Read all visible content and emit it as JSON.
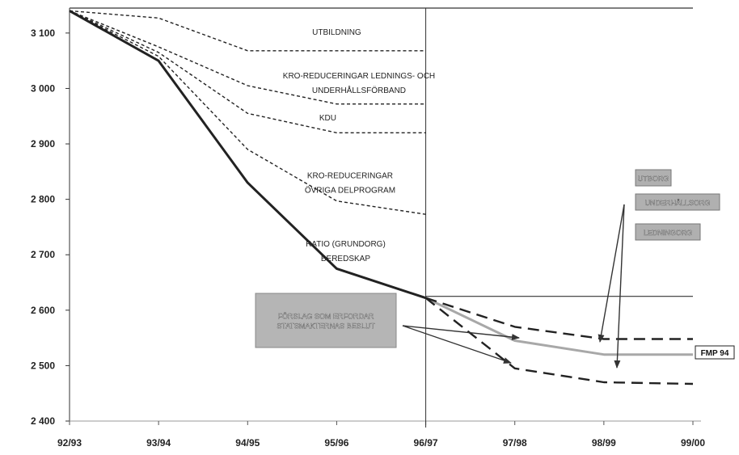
{
  "chart_data": {
    "type": "line",
    "x": [
      "92/93",
      "93/94",
      "94/95",
      "95/96",
      "96/97",
      "97/98",
      "98/99",
      "99/00"
    ],
    "y_ticks": [
      {
        "value": 3100,
        "label": "3 100"
      },
      {
        "value": 3000,
        "label": "3 000"
      },
      {
        "value": 2900,
        "label": "2 900"
      },
      {
        "value": 2800,
        "label": "2 800"
      },
      {
        "value": 2700,
        "label": "2 700"
      },
      {
        "value": 2600,
        "label": "2 600"
      },
      {
        "value": 2500,
        "label": "2 500"
      },
      {
        "value": 2400,
        "label": "2 400"
      }
    ],
    "ylim": [
      2400,
      3145
    ],
    "grid": false,
    "title": "",
    "xlabel": "",
    "ylabel": "",
    "colors": {
      "main": "#222222",
      "gray": "#a8a8a8",
      "box_fill": "#b0b0b0",
      "box_text": "#ffffff"
    },
    "series": [
      {
        "values": [
          3140,
          3050,
          2830,
          2675,
          2622,
          null,
          null,
          null
        ],
        "style": "solid-thick"
      },
      {
        "values": [
          3140,
          3127,
          3068,
          3068,
          3068,
          null,
          null,
          null
        ],
        "style": "dotted"
      },
      {
        "values": [
          3140,
          3075,
          3005,
          2972,
          2972,
          null,
          null,
          null
        ],
        "style": "dotted"
      },
      {
        "values": [
          3140,
          3065,
          2955,
          2920,
          2920,
          null,
          null,
          null
        ],
        "style": "dotted"
      },
      {
        "values": [
          3140,
          3058,
          2890,
          2797,
          2773,
          null,
          null,
          null
        ],
        "style": "dotted"
      },
      {
        "values": [
          null,
          null,
          null,
          null,
          2622,
          2545,
          2520,
          2520
        ],
        "style": "solid-gray"
      },
      {
        "values": [
          null,
          null,
          null,
          null,
          2622,
          2570,
          2548,
          2548
        ],
        "style": "dashed"
      },
      {
        "values": [
          null,
          null,
          null,
          null,
          2622,
          2495,
          2470,
          2467
        ],
        "style": "dashed"
      },
      {
        "values": [
          3145,
          3145,
          3145,
          3145,
          3145,
          3145,
          3145,
          3145
        ],
        "style": "hline"
      },
      {
        "values": [
          null,
          null,
          null,
          null,
          2625,
          2625,
          2625,
          2625
        ],
        "style": "hline"
      }
    ],
    "annotations": [
      {
        "lines": [
          "UTBILDNING"
        ],
        "x": 3.0,
        "y": 3097
      },
      {
        "lines": [
          "KRO-REDUCERINGAR LEDNINGS- OCH",
          "UNDERHÅLLSFÖRBAND"
        ],
        "x": 3.25,
        "y": 3018
      },
      {
        "lines": [
          "KDU"
        ],
        "x": 2.9,
        "y": 2942
      },
      {
        "lines": [
          "KRO-REDUCERINGAR",
          "ÖVRIGA DELPROGRAM"
        ],
        "x": 3.15,
        "y": 2838
      },
      {
        "lines": [
          "RATIO (GRUNDORG)",
          "BEREDSKAP"
        ],
        "x": 3.1,
        "y": 2715
      }
    ],
    "boxes": [
      {
        "lines": [
          "FÖRSLAG SOM ERFORDAR",
          "STATSMAKTERNAS BESLUT"
        ],
        "kind": "large"
      },
      {
        "lines": [
          "UTBORG"
        ],
        "kind": "small"
      },
      {
        "lines": [
          "UNDERHÅLLSORG"
        ],
        "kind": "small"
      },
      {
        "lines": [
          "LEDNINGORG"
        ],
        "kind": "small"
      },
      {
        "lines": [
          "FMP 94"
        ],
        "kind": "flag"
      }
    ],
    "vertical_marker_x": "96/97"
  }
}
